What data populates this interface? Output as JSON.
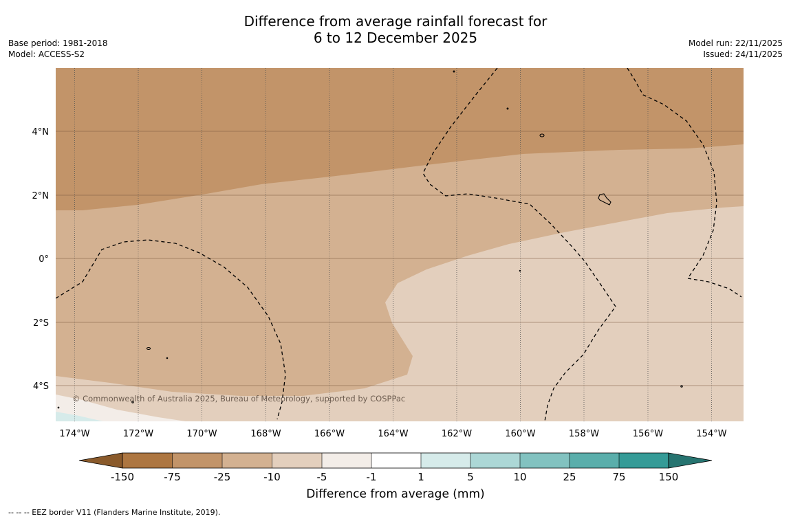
{
  "title": {
    "line1": "Difference from average rainfall forecast for",
    "line2": "6 to 12 December 2025"
  },
  "meta": {
    "base_period": "Base period: 1981-2018",
    "model": "Model: ACCESS-S2",
    "model_run": "Model run: 22/11/2025",
    "issued": "Issued: 24/11/2025"
  },
  "map": {
    "lon_ticks": [
      "174°W",
      "172°W",
      "170°W",
      "168°W",
      "166°W",
      "164°W",
      "162°W",
      "160°W",
      "158°W",
      "156°W",
      "154°W"
    ],
    "lat_ticks": [
      "4°N",
      "2°N",
      "0°",
      "2°S",
      "4°S"
    ],
    "copyright": "© Commonwealth of Australia 2025, Bureau of Meteorology, supported by COSPPac"
  },
  "colorbar": {
    "labels": [
      "-150",
      "-75",
      "-25",
      "-10",
      "-5",
      "-1",
      "1",
      "5",
      "10",
      "25",
      "75",
      "150"
    ],
    "colors": [
      "#8a5a2b",
      "#ad7641",
      "#c29469",
      "#d3b191",
      "#e3cfbd",
      "#f3ede8",
      "#ffffff",
      "#d6ebea",
      "#acd7d6",
      "#82c2c0",
      "#5aaeab",
      "#359b97",
      "#267470"
    ],
    "title": "Difference from average (mm)"
  },
  "footer": "--  --  -- EEZ border V11 (Flanders Marine Institute, 2019)."
}
